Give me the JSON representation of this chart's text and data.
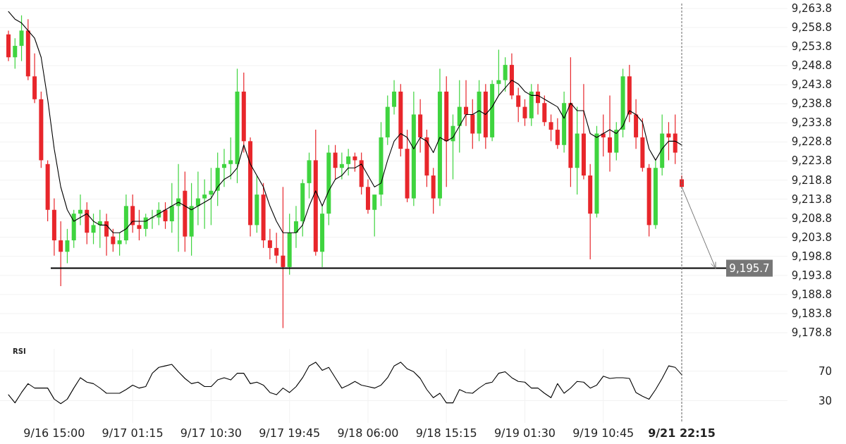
{
  "chart_data": [
    {
      "type": "candlestick",
      "colors": [
        "#e8262b",
        "#3fd43f",
        "#3fd43f",
        "#e8262b",
        "#e8262b",
        "#e8262b",
        "#e8262b",
        "#e8262b",
        "#e8262b",
        "#3fd43f",
        "#3fd43f",
        "#3fd43f",
        "#e8262b",
        "#3fd43f",
        "#3fd43f",
        "#e8262b",
        "#e8262b",
        "#3fd43f",
        "#3fd43f",
        "#e8262b",
        "#e8262b",
        "#3fd43f",
        "#3fd43f",
        "#3fd43f",
        "#e8262b",
        "#3fd43f",
        "#3fd43f",
        "#e8262b",
        "#3fd43f",
        "#3fd43f",
        "#3fd43f",
        "#3fd43f",
        "#3fd43f",
        "#3fd43f",
        "#3fd43f",
        "#3fd43f",
        "#e8262b",
        "#e8262b",
        "#3fd43f",
        "#e8262b",
        "#e8262b",
        "#e8262b",
        "#e8262b",
        "#3fd43f",
        "#3fd43f",
        "#3fd43f",
        "#3fd43f",
        "#e8262b",
        "#3fd43f",
        "#3fd43f",
        "#e8262b",
        "#3fd43f",
        "#3fd43f",
        "#e8262b",
        "#e8262b",
        "#e8262b",
        "#3fd43f",
        "#3fd43f",
        "#3fd43f",
        "#3fd43f",
        "#e8262b",
        "#e8262b",
        "#3fd43f",
        "#e8262b",
        "#e8262b",
        "#e8262b",
        "#3fd43f",
        "#e8262b",
        "#3fd43f",
        "#3fd43f",
        "#e8262b",
        "#e8262b",
        "#3fd43f",
        "#e8262b",
        "#3fd43f",
        "#3fd43f",
        "#3fd43f",
        "#e8262b",
        "#e8262b",
        "#e8262b",
        "#3fd43f",
        "#e8262b",
        "#e8262b",
        "#e8262b",
        "#e8262b",
        "#3fd43f",
        "#e8262b",
        "#3fd43f",
        "#e8262b",
        "#e8262b",
        "#3fd43f",
        "#e8262b",
        "#e8262b",
        "#3fd43f",
        "#3fd43f",
        "#e8262b",
        "#e8262b",
        "#e8262b",
        "#e8262b",
        "#3fd43f",
        "#3fd43f",
        "#e8262b",
        "#e8262b",
        "#e8262b"
      ],
      "categories": [
        null,
        null,
        null,
        null,
        null,
        null,
        null,
        null,
        null,
        null,
        null,
        null,
        null,
        null,
        null,
        null,
        null,
        null,
        null,
        null,
        null,
        null,
        null,
        null,
        null,
        null,
        null,
        null,
        null,
        null,
        null,
        null,
        null,
        null,
        null,
        null,
        null,
        null,
        null,
        null,
        null,
        null,
        null,
        null,
        null,
        null,
        null,
        null,
        null,
        null,
        null,
        null,
        null,
        null,
        null,
        null,
        null,
        null,
        null,
        null,
        null,
        null,
        null,
        null,
        null,
        null,
        null,
        null,
        null,
        null,
        null,
        null,
        null,
        null,
        null,
        null,
        null,
        null,
        null,
        null,
        null,
        null,
        null,
        null,
        null,
        null,
        null,
        null,
        null,
        null,
        null,
        null,
        null,
        null,
        null,
        null,
        null,
        null,
        null,
        null,
        null,
        null,
        null,
        null
      ],
      "ohlc": [
        [
          9257,
          9258,
          9250,
          9251
        ],
        [
          9251,
          9256,
          9248,
          9254
        ],
        [
          9254,
          9262,
          9250,
          9258
        ],
        [
          9258,
          9261,
          9245,
          9246
        ],
        [
          9246,
          9252,
          9239,
          9240
        ],
        [
          9240,
          9242,
          9222,
          9224
        ],
        [
          9223,
          9224,
          9208,
          9211
        ],
        [
          9211,
          9214,
          9199,
          9203
        ],
        [
          9203,
          9208,
          9191,
          9200
        ],
        [
          9200,
          9206,
          9197,
          9203
        ],
        [
          9203,
          9211,
          9201,
          9210
        ],
        [
          9210,
          9215,
          9207,
          9211
        ],
        [
          9211,
          9213,
          9202,
          9205
        ],
        [
          9205,
          9210,
          9202,
          9207
        ],
        [
          9207,
          9211,
          9201,
          9208
        ],
        [
          9208,
          9210,
          9199,
          9204
        ],
        [
          9204,
          9206,
          9200,
          9202
        ],
        [
          9202,
          9205,
          9199,
          9203
        ],
        [
          9203,
          9215,
          9202,
          9212
        ],
        [
          9212,
          9215,
          9205,
          9207
        ],
        [
          9207,
          9211,
          9203,
          9206
        ],
        [
          9206,
          9210,
          9204,
          9209
        ],
        [
          9209,
          9211,
          9206,
          9209
        ],
        [
          9209,
          9213,
          9207,
          9211
        ],
        [
          9211,
          9213,
          9206,
          9208
        ],
        [
          9208,
          9218,
          9205,
          9212
        ],
        [
          9212,
          9223,
          9200,
          9214
        ],
        [
          9216,
          9221,
          9200,
          9204
        ],
        [
          9204,
          9218,
          9199,
          9212
        ],
        [
          9212,
          9221,
          9207,
          9214
        ],
        [
          9214,
          9219,
          9206,
          9215
        ],
        [
          9215,
          9222,
          9207,
          9216
        ],
        [
          9216,
          9226,
          9212,
          9222
        ],
        [
          9222,
          9227,
          9217,
          9223
        ],
        [
          9223,
          9230,
          9219,
          9224
        ],
        [
          9223,
          9248,
          9218,
          9242
        ],
        [
          9242,
          9247,
          9226,
          9229
        ],
        [
          9229,
          9230,
          9204,
          9207
        ],
        [
          9207,
          9220,
          9205,
          9215
        ],
        [
          9215,
          9218,
          9201,
          9203
        ],
        [
          9203,
          9206,
          9198,
          9201
        ],
        [
          9201,
          9205,
          9197,
          9199
        ],
        [
          9199,
          9217,
          9180,
          9196
        ],
        [
          9196,
          9210,
          9194,
          9205
        ],
        [
          9205,
          9212,
          9201,
          9208
        ],
        [
          9208,
          9219,
          9204,
          9218
        ],
        [
          9218,
          9226,
          9214,
          9224
        ],
        [
          9224,
          9232,
          9199,
          9200
        ],
        [
          9200,
          9212,
          9196,
          9210
        ],
        [
          9210,
          9228,
          9207,
          9226
        ],
        [
          9226,
          9228,
          9219,
          9222
        ],
        [
          9222,
          9226,
          9219,
          9223
        ],
        [
          9223,
          9227,
          9220,
          9225
        ],
        [
          9225,
          9226,
          9221,
          9224
        ],
        [
          9224,
          9226,
          9215,
          9217
        ],
        [
          9217,
          9219,
          9210,
          9211
        ],
        [
          9211,
          9215,
          9204,
          9215
        ],
        [
          9215,
          9234,
          9212,
          9230
        ],
        [
          9230,
          9241,
          9228,
          9238
        ],
        [
          9238,
          9245,
          9236,
          9242
        ],
        [
          9242,
          9244,
          9225,
          9227
        ],
        [
          9227,
          9232,
          9213,
          9214
        ],
        [
          9214,
          9242,
          9212,
          9236
        ],
        [
          9236,
          9240,
          9226,
          9230
        ],
        [
          9230,
          9232,
          9217,
          9220
        ],
        [
          9220,
          9222,
          9210,
          9214
        ],
        [
          9214,
          9248,
          9212,
          9242
        ],
        [
          9242,
          9246,
          9217,
          9229
        ],
        [
          9229,
          9236,
          9219,
          9233
        ],
        [
          9233,
          9245,
          9226,
          9238
        ],
        [
          9238,
          9245,
          9233,
          9236
        ],
        [
          9236,
          9240,
          9227,
          9231
        ],
        [
          9231,
          9245,
          9229,
          9242
        ],
        [
          9242,
          9244,
          9227,
          9230
        ],
        [
          9230,
          9245,
          9229,
          9244
        ],
        [
          9244,
          9253,
          9241,
          9245
        ],
        [
          9245,
          9251,
          9242,
          9249
        ],
        [
          9249,
          9252,
          9240,
          9241
        ],
        [
          9241,
          9243,
          9234,
          9238
        ],
        [
          9238,
          9240,
          9233,
          9235
        ],
        [
          9235,
          9244,
          9233,
          9242
        ],
        [
          9242,
          9244,
          9236,
          9239
        ],
        [
          9239,
          9241,
          9233,
          9234
        ],
        [
          9234,
          9236,
          9229,
          9232
        ],
        [
          9232,
          9235,
          9227,
          9228
        ],
        [
          9228,
          9242,
          9226,
          9239
        ],
        [
          9239,
          9251,
          9217,
          9222
        ],
        [
          9222,
          9238,
          9215,
          9231
        ],
        [
          9231,
          9244,
          9219,
          9220
        ],
        [
          9220,
          9223,
          9198,
          9210
        ],
        [
          9210,
          9233,
          9209,
          9231
        ],
        [
          9231,
          9236,
          9225,
          9230
        ],
        [
          9230,
          9241,
          9221,
          9226
        ],
        [
          9226,
          9234,
          9224,
          9232
        ],
        [
          9232,
          9248,
          9230,
          9246
        ],
        [
          9246,
          9249,
          9234,
          9236
        ],
        [
          9236,
          9240,
          9227,
          9230
        ],
        [
          9230,
          9235,
          9221,
          9222
        ],
        [
          9222,
          9223,
          9204,
          9207
        ],
        [
          9207,
          9224,
          9206,
          9222
        ],
        [
          9222,
          9236,
          9220,
          9231
        ],
        [
          9231,
          9234,
          9224,
          9230
        ],
        [
          9231,
          9236,
          9223,
          9226
        ],
        [
          9219,
          9220,
          9217,
          9217
        ]
      ],
      "series": [
        {
          "type": "line",
          "color": "#000000",
          "values": [
            9263,
            9261,
            9260,
            9258,
            9256,
            9251,
            9240,
            9227,
            9217,
            9211,
            9208,
            9209,
            9210,
            9208,
            9207,
            9207,
            9205,
            9205,
            9206,
            9208,
            9208,
            9208,
            9209,
            9210,
            9211,
            9212,
            9213,
            9212,
            9211,
            9212,
            9213,
            9214,
            9217,
            9219,
            9220,
            9222,
            9228,
            9223,
            9220,
            9217,
            9212,
            9208,
            9205,
            9205,
            9205,
            9207,
            9212,
            9216,
            9212,
            9216,
            9219,
            9220,
            9222,
            9222,
            9223,
            9220,
            9217,
            9218,
            9224,
            9229,
            9231,
            9230,
            9227,
            9230,
            9229,
            9226,
            9230,
            9229,
            9230,
            9233,
            9236,
            9236,
            9237,
            9236,
            9238,
            9241,
            9243,
            9245,
            9244,
            9242,
            9241,
            9241,
            9240,
            9239,
            9238,
            9235,
            9239,
            9237,
            9237,
            9231,
            9230,
            9231,
            9232,
            9231,
            9233,
            9237,
            9236,
            9234,
            9227,
            9224,
            9227,
            9229,
            9229,
            9228
          ]
        }
      ],
      "ylim": [
        9178.8,
        9263.8
      ],
      "yticks": [
        {
          "value": 9178.8,
          "label": "9,178.8"
        },
        {
          "value": 9183.8,
          "label": "9,183.8"
        },
        {
          "value": 9188.8,
          "label": "9,188.8"
        },
        {
          "value": 9193.8,
          "label": "9,193.8"
        },
        {
          "value": 9198.8,
          "label": "9,198.8"
        },
        {
          "value": 9203.8,
          "label": "9,203.8"
        },
        {
          "value": 9208.8,
          "label": "9,208.8"
        },
        {
          "value": 9213.8,
          "label": "9,213.8"
        },
        {
          "value": 9218.8,
          "label": "9,218.8"
        },
        {
          "value": 9223.8,
          "label": "9,223.8"
        },
        {
          "value": 9228.8,
          "label": "9,228.8"
        },
        {
          "value": 9233.8,
          "label": "9,233.8"
        },
        {
          "value": 9238.8,
          "label": "9,238.8"
        },
        {
          "value": 9243.8,
          "label": "9,243.8"
        },
        {
          "value": 9248.8,
          "label": "9,248.8"
        },
        {
          "value": 9253.8,
          "label": "9,253.8"
        },
        {
          "value": 9258.8,
          "label": "9,258.8"
        },
        {
          "value": 9263.8,
          "label": "9,263.8"
        }
      ],
      "ref_lines": [
        {
          "axis": "y",
          "value": 9195.7,
          "label": "9,195.7",
          "color": "#000000"
        }
      ],
      "grid": "y"
    },
    {
      "type": "line",
      "title": "RSI",
      "color": "#000000",
      "categories": [
        null,
        null,
        null,
        null,
        null,
        null,
        null,
        "9/16 15:00",
        null,
        null,
        null,
        null,
        null,
        null,
        null,
        null,
        null,
        null,
        null,
        "9/17 01:15",
        null,
        null,
        null,
        null,
        null,
        null,
        null,
        null,
        null,
        null,
        null,
        "9/17 10:30",
        null,
        null,
        null,
        null,
        null,
        null,
        null,
        null,
        null,
        null,
        null,
        "9/17 19:45",
        null,
        null,
        null,
        null,
        null,
        null,
        null,
        null,
        null,
        null,
        null,
        "9/18 06:00",
        null,
        null,
        null,
        null,
        null,
        null,
        null,
        null,
        null,
        null,
        null,
        "9/18 15:15",
        null,
        null,
        null,
        null,
        null,
        null,
        null,
        null,
        null,
        null,
        null,
        "9/19 01:30",
        null,
        null,
        null,
        null,
        null,
        null,
        null,
        null,
        null,
        null,
        null,
        "9/19 10:45",
        null,
        null,
        null,
        null,
        null,
        null,
        null,
        null,
        null,
        null,
        null,
        "9/21 22:15"
      ],
      "values": [
        38,
        27,
        41,
        53,
        47,
        47,
        47,
        32,
        26,
        32,
        47,
        61,
        55,
        53,
        47,
        40,
        40,
        40,
        45,
        51,
        47,
        49,
        67,
        75,
        77,
        79,
        69,
        60,
        53,
        55,
        49,
        49,
        58,
        61,
        58,
        67,
        67,
        53,
        55,
        51,
        41,
        38,
        47,
        41,
        49,
        61,
        77,
        82,
        71,
        75,
        61,
        47,
        51,
        56,
        51,
        49,
        47,
        51,
        61,
        77,
        82,
        73,
        69,
        60,
        45,
        34,
        40,
        27,
        27,
        45,
        41,
        40,
        47,
        53,
        55,
        67,
        69,
        61,
        56,
        55,
        47,
        47,
        40,
        34,
        53,
        40,
        47,
        56,
        55,
        47,
        51,
        63,
        60,
        61,
        61,
        60,
        41,
        36,
        32,
        45,
        60,
        77,
        75,
        65
      ],
      "ylim": [
        0,
        100
      ],
      "yticks": [
        30,
        70
      ],
      "ref_lines": [
        {
          "axis": "x",
          "value": "9/21 22:15",
          "color": "#666666",
          "line_style": "dashed"
        }
      ],
      "grid": true
    }
  ]
}
